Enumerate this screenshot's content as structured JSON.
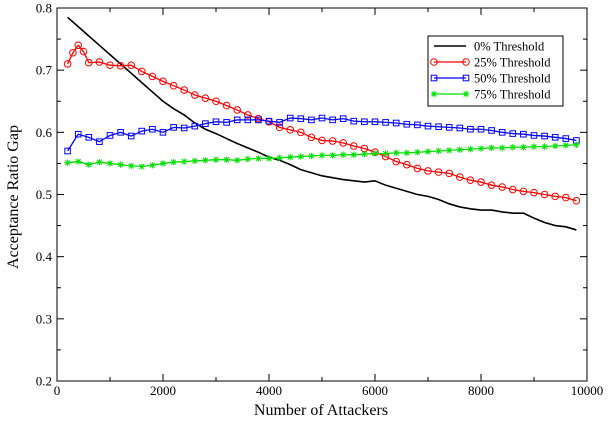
{
  "chart_data": {
    "type": "line",
    "title": "",
    "xlabel": "Number of Attackers",
    "ylabel": "Acceptance Ratio Gap",
    "xlim": [
      0,
      10000
    ],
    "ylim": [
      0.2,
      0.8
    ],
    "x_ticks": [
      0,
      2000,
      4000,
      6000,
      8000,
      10000
    ],
    "x_tick_labels": [
      "0",
      "2000",
      "4000",
      "6000",
      "8000",
      "10000"
    ],
    "y_ticks": [
      0.2,
      0.3,
      0.4,
      0.5,
      0.6,
      0.7,
      0.8
    ],
    "y_tick_labels": [
      "0.2",
      "0.3",
      "0.4",
      "0.5",
      "0.6",
      "0.7",
      "0.8"
    ],
    "grid": false,
    "legend_position": "top-right",
    "series": [
      {
        "name": "0% Threshold",
        "color": "#000000",
        "marker": "none",
        "points": [
          [
            200,
            0.785
          ],
          [
            400,
            0.77
          ],
          [
            600,
            0.755
          ],
          [
            800,
            0.74
          ],
          [
            1000,
            0.725
          ],
          [
            1200,
            0.71
          ],
          [
            1400,
            0.695
          ],
          [
            1600,
            0.68
          ],
          [
            1800,
            0.665
          ],
          [
            2000,
            0.65
          ],
          [
            2200,
            0.638
          ],
          [
            2400,
            0.628
          ],
          [
            2600,
            0.615
          ],
          [
            2800,
            0.605
          ],
          [
            3000,
            0.598
          ],
          [
            3200,
            0.59
          ],
          [
            3400,
            0.582
          ],
          [
            3600,
            0.575
          ],
          [
            3800,
            0.568
          ],
          [
            4000,
            0.56
          ],
          [
            4200,
            0.555
          ],
          [
            4400,
            0.548
          ],
          [
            4600,
            0.54
          ],
          [
            4800,
            0.535
          ],
          [
            5000,
            0.53
          ],
          [
            5200,
            0.527
          ],
          [
            5400,
            0.524
          ],
          [
            5600,
            0.522
          ],
          [
            5800,
            0.52
          ],
          [
            6000,
            0.522
          ],
          [
            6200,
            0.515
          ],
          [
            6400,
            0.51
          ],
          [
            6600,
            0.505
          ],
          [
            6800,
            0.5
          ],
          [
            7000,
            0.497
          ],
          [
            7200,
            0.492
          ],
          [
            7400,
            0.485
          ],
          [
            7600,
            0.48
          ],
          [
            7800,
            0.477
          ],
          [
            8000,
            0.475
          ],
          [
            8200,
            0.475
          ],
          [
            8400,
            0.472
          ],
          [
            8600,
            0.47
          ],
          [
            8800,
            0.47
          ],
          [
            9000,
            0.462
          ],
          [
            9200,
            0.455
          ],
          [
            9400,
            0.45
          ],
          [
            9600,
            0.448
          ],
          [
            9800,
            0.443
          ]
        ]
      },
      {
        "name": "25% Threshold",
        "color": "#ff0000",
        "marker": "circle",
        "points": [
          [
            200,
            0.71
          ],
          [
            300,
            0.728
          ],
          [
            400,
            0.74
          ],
          [
            500,
            0.73
          ],
          [
            600,
            0.712
          ],
          [
            800,
            0.713
          ],
          [
            1000,
            0.708
          ],
          [
            1200,
            0.707
          ],
          [
            1400,
            0.708
          ],
          [
            1600,
            0.698
          ],
          [
            1800,
            0.69
          ],
          [
            2000,
            0.682
          ],
          [
            2200,
            0.675
          ],
          [
            2400,
            0.668
          ],
          [
            2600,
            0.66
          ],
          [
            2800,
            0.655
          ],
          [
            3000,
            0.65
          ],
          [
            3200,
            0.643
          ],
          [
            3400,
            0.636
          ],
          [
            3600,
            0.628
          ],
          [
            3800,
            0.622
          ],
          [
            4000,
            0.617
          ],
          [
            4200,
            0.608
          ],
          [
            4400,
            0.604
          ],
          [
            4600,
            0.6
          ],
          [
            4800,
            0.592
          ],
          [
            5000,
            0.587
          ],
          [
            5200,
            0.586
          ],
          [
            5400,
            0.583
          ],
          [
            5600,
            0.578
          ],
          [
            5800,
            0.574
          ],
          [
            6000,
            0.568
          ],
          [
            6200,
            0.561
          ],
          [
            6400,
            0.553
          ],
          [
            6600,
            0.548
          ],
          [
            6800,
            0.542
          ],
          [
            7000,
            0.538
          ],
          [
            7200,
            0.536
          ],
          [
            7400,
            0.534
          ],
          [
            7600,
            0.528
          ],
          [
            7800,
            0.523
          ],
          [
            8000,
            0.52
          ],
          [
            8200,
            0.515
          ],
          [
            8400,
            0.512
          ],
          [
            8600,
            0.508
          ],
          [
            8800,
            0.505
          ],
          [
            9000,
            0.503
          ],
          [
            9200,
            0.5
          ],
          [
            9400,
            0.497
          ],
          [
            9600,
            0.495
          ],
          [
            9800,
            0.49
          ]
        ]
      },
      {
        "name": "50% Threshold",
        "color": "#0000ff",
        "marker": "square",
        "points": [
          [
            200,
            0.57
          ],
          [
            400,
            0.597
          ],
          [
            600,
            0.592
          ],
          [
            800,
            0.585
          ],
          [
            1000,
            0.595
          ],
          [
            1200,
            0.6
          ],
          [
            1400,
            0.594
          ],
          [
            1600,
            0.602
          ],
          [
            1800,
            0.605
          ],
          [
            2000,
            0.6
          ],
          [
            2200,
            0.608
          ],
          [
            2400,
            0.607
          ],
          [
            2600,
            0.61
          ],
          [
            2800,
            0.614
          ],
          [
            3000,
            0.617
          ],
          [
            3200,
            0.616
          ],
          [
            3400,
            0.62
          ],
          [
            3600,
            0.62
          ],
          [
            3800,
            0.62
          ],
          [
            4000,
            0.618
          ],
          [
            4200,
            0.616
          ],
          [
            4400,
            0.623
          ],
          [
            4600,
            0.622
          ],
          [
            4800,
            0.62
          ],
          [
            5000,
            0.623
          ],
          [
            5200,
            0.62
          ],
          [
            5400,
            0.622
          ],
          [
            5600,
            0.618
          ],
          [
            5800,
            0.617
          ],
          [
            6000,
            0.617
          ],
          [
            6200,
            0.616
          ],
          [
            6400,
            0.615
          ],
          [
            6600,
            0.613
          ],
          [
            6800,
            0.612
          ],
          [
            7000,
            0.61
          ],
          [
            7200,
            0.609
          ],
          [
            7400,
            0.608
          ],
          [
            7600,
            0.607
          ],
          [
            7800,
            0.605
          ],
          [
            8000,
            0.605
          ],
          [
            8200,
            0.603
          ],
          [
            8400,
            0.6
          ],
          [
            8600,
            0.598
          ],
          [
            8800,
            0.597
          ],
          [
            9000,
            0.595
          ],
          [
            9200,
            0.594
          ],
          [
            9400,
            0.592
          ],
          [
            9600,
            0.59
          ],
          [
            9800,
            0.587
          ]
        ]
      },
      {
        "name": "75% Threshold",
        "color": "#00e000",
        "marker": "star",
        "points": [
          [
            200,
            0.551
          ],
          [
            400,
            0.553
          ],
          [
            600,
            0.548
          ],
          [
            800,
            0.552
          ],
          [
            1000,
            0.55
          ],
          [
            1200,
            0.548
          ],
          [
            1400,
            0.546
          ],
          [
            1600,
            0.545
          ],
          [
            1800,
            0.547
          ],
          [
            2000,
            0.55
          ],
          [
            2200,
            0.552
          ],
          [
            2400,
            0.553
          ],
          [
            2600,
            0.554
          ],
          [
            2800,
            0.555
          ],
          [
            3000,
            0.556
          ],
          [
            3200,
            0.556
          ],
          [
            3400,
            0.555
          ],
          [
            3600,
            0.557
          ],
          [
            3800,
            0.558
          ],
          [
            4000,
            0.558
          ],
          [
            4200,
            0.559
          ],
          [
            4400,
            0.56
          ],
          [
            4600,
            0.561
          ],
          [
            4800,
            0.562
          ],
          [
            5000,
            0.563
          ],
          [
            5200,
            0.563
          ],
          [
            5400,
            0.564
          ],
          [
            5600,
            0.564
          ],
          [
            5800,
            0.565
          ],
          [
            6000,
            0.566
          ],
          [
            6200,
            0.566
          ],
          [
            6400,
            0.567
          ],
          [
            6600,
            0.567
          ],
          [
            6800,
            0.568
          ],
          [
            7000,
            0.569
          ],
          [
            7200,
            0.57
          ],
          [
            7400,
            0.571
          ],
          [
            7600,
            0.572
          ],
          [
            7800,
            0.573
          ],
          [
            8000,
            0.574
          ],
          [
            8200,
            0.575
          ],
          [
            8400,
            0.575
          ],
          [
            8600,
            0.576
          ],
          [
            8800,
            0.576
          ],
          [
            9000,
            0.577
          ],
          [
            9200,
            0.577
          ],
          [
            9400,
            0.578
          ],
          [
            9600,
            0.579
          ],
          [
            9800,
            0.58
          ]
        ]
      }
    ]
  }
}
